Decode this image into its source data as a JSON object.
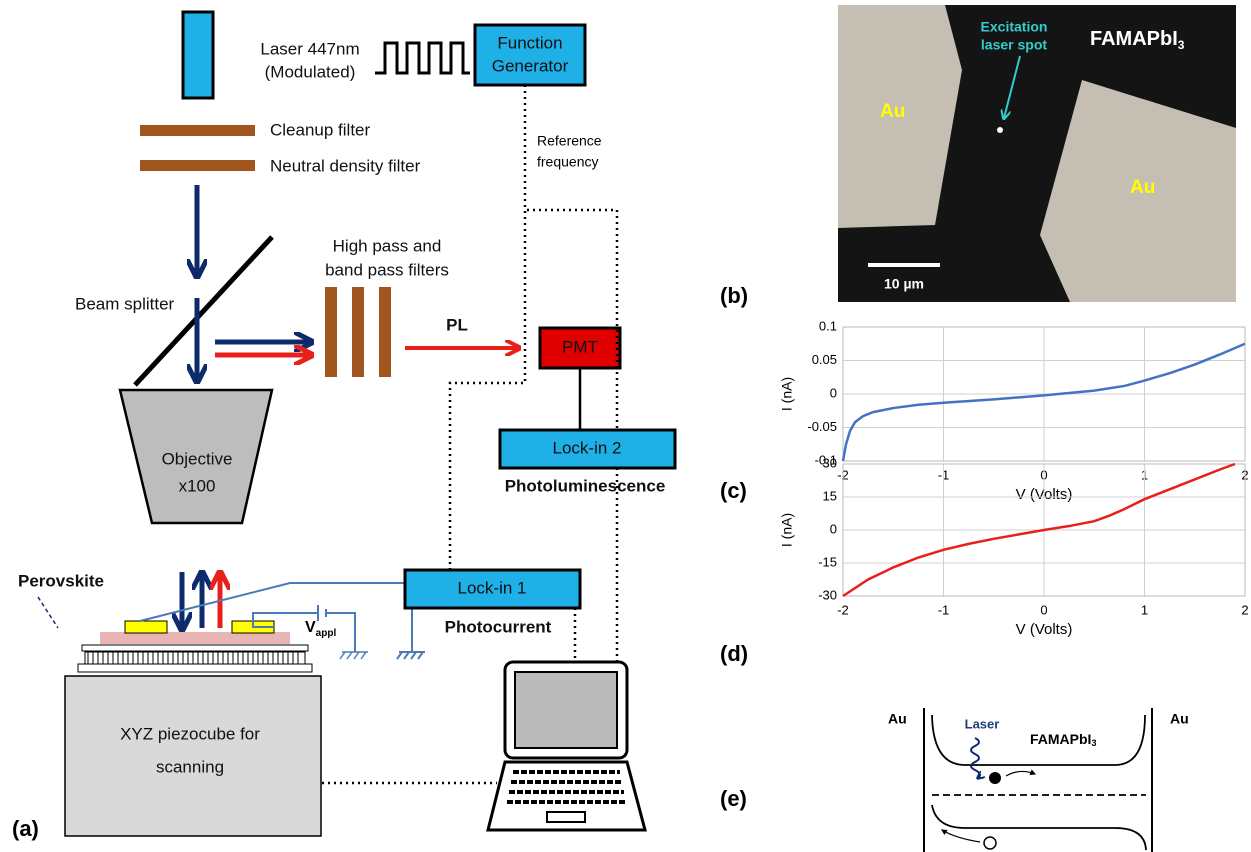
{
  "panel_labels": [
    "(a)",
    "(b)",
    "(c)",
    "(d)",
    "(e)"
  ],
  "setup": {
    "laser": [
      "Laser 447nm",
      "(Modulated)"
    ],
    "function_generator": [
      "Function",
      "Generator"
    ],
    "cleanup_filter": "Cleanup filter",
    "nd_filter": "Neutral density filter",
    "reference": [
      "Reference",
      "frequency"
    ],
    "beam_splitter": "Beam splitter",
    "filters": [
      "High pass and",
      "band pass filters"
    ],
    "pl": "PL",
    "pmt": "PMT",
    "lockin2": "Lock-in 2",
    "photoluminescence": "Photoluminescence",
    "objective": [
      "Objective",
      "x100"
    ],
    "perovskite": "Perovskite",
    "lockin1": "Lock-in 1",
    "photocurrent": "Photocurrent",
    "v_appl": {
      "text": "V",
      "subscript": "appl"
    },
    "piezocube": [
      "XYZ piezocube for",
      "scanning"
    ]
  },
  "micrograph": {
    "spot": [
      "Excitation",
      "laser spot"
    ],
    "material": {
      "text": "FAMAPbI",
      "subscript": "3"
    },
    "electrodes": [
      "Au",
      "Au"
    ],
    "scale_bar": "10 µm"
  },
  "band_diagram": {
    "laser": "Laser",
    "material": {
      "text": "FAMAPbI",
      "subscript": "3"
    },
    "electrodes": [
      "Au",
      "Au"
    ]
  },
  "chart_data": [
    {
      "type": "line",
      "x_label": "V (Volts)",
      "y_label": "I (nA)",
      "x": [
        -2,
        -1.97,
        -1.93,
        -1.88,
        -1.8,
        -1.7,
        -1.5,
        -1.25,
        -1,
        -0.5,
        0,
        0.5,
        0.8,
        1,
        1.25,
        1.5,
        1.75,
        2
      ],
      "series": [
        {
          "color": "#4472c4",
          "values": [
            -0.1,
            -0.075,
            -0.055,
            -0.042,
            -0.033,
            -0.027,
            -0.021,
            -0.016,
            -0.013,
            -0.008,
            -0.002,
            0.005,
            0.012,
            0.02,
            0.031,
            0.044,
            0.059,
            0.075
          ]
        }
      ],
      "xlim": [
        -2,
        2
      ],
      "xticks": [
        -2,
        -1,
        0,
        1,
        2
      ],
      "ylim": [
        -0.1,
        0.1
      ],
      "yticks": [
        -0.1,
        -0.05,
        0,
        0.05,
        0.1
      ],
      "grid": true
    },
    {
      "type": "line",
      "x_label": "V (Volts)",
      "y_label": "I (nA)",
      "x": [
        -2,
        -1.75,
        -1.5,
        -1.25,
        -1,
        -0.75,
        -0.5,
        -0.25,
        0,
        0.25,
        0.5,
        0.65,
        0.8,
        1,
        1.25,
        1.5,
        1.75,
        1.9
      ],
      "series": [
        {
          "color": "#e8201c",
          "values": [
            -30,
            -22.5,
            -17,
            -12.5,
            -9,
            -6.3,
            -4,
            -2,
            0,
            1.8,
            4,
            6.5,
            9.5,
            14,
            18.5,
            23,
            27.5,
            30
          ]
        }
      ],
      "xlim": [
        -2,
        2
      ],
      "xticks": [
        -2,
        -1,
        0,
        1,
        2
      ],
      "ylim": [
        -30,
        30
      ],
      "yticks": [
        -30,
        -15,
        0,
        15,
        30
      ],
      "grid": true
    }
  ]
}
